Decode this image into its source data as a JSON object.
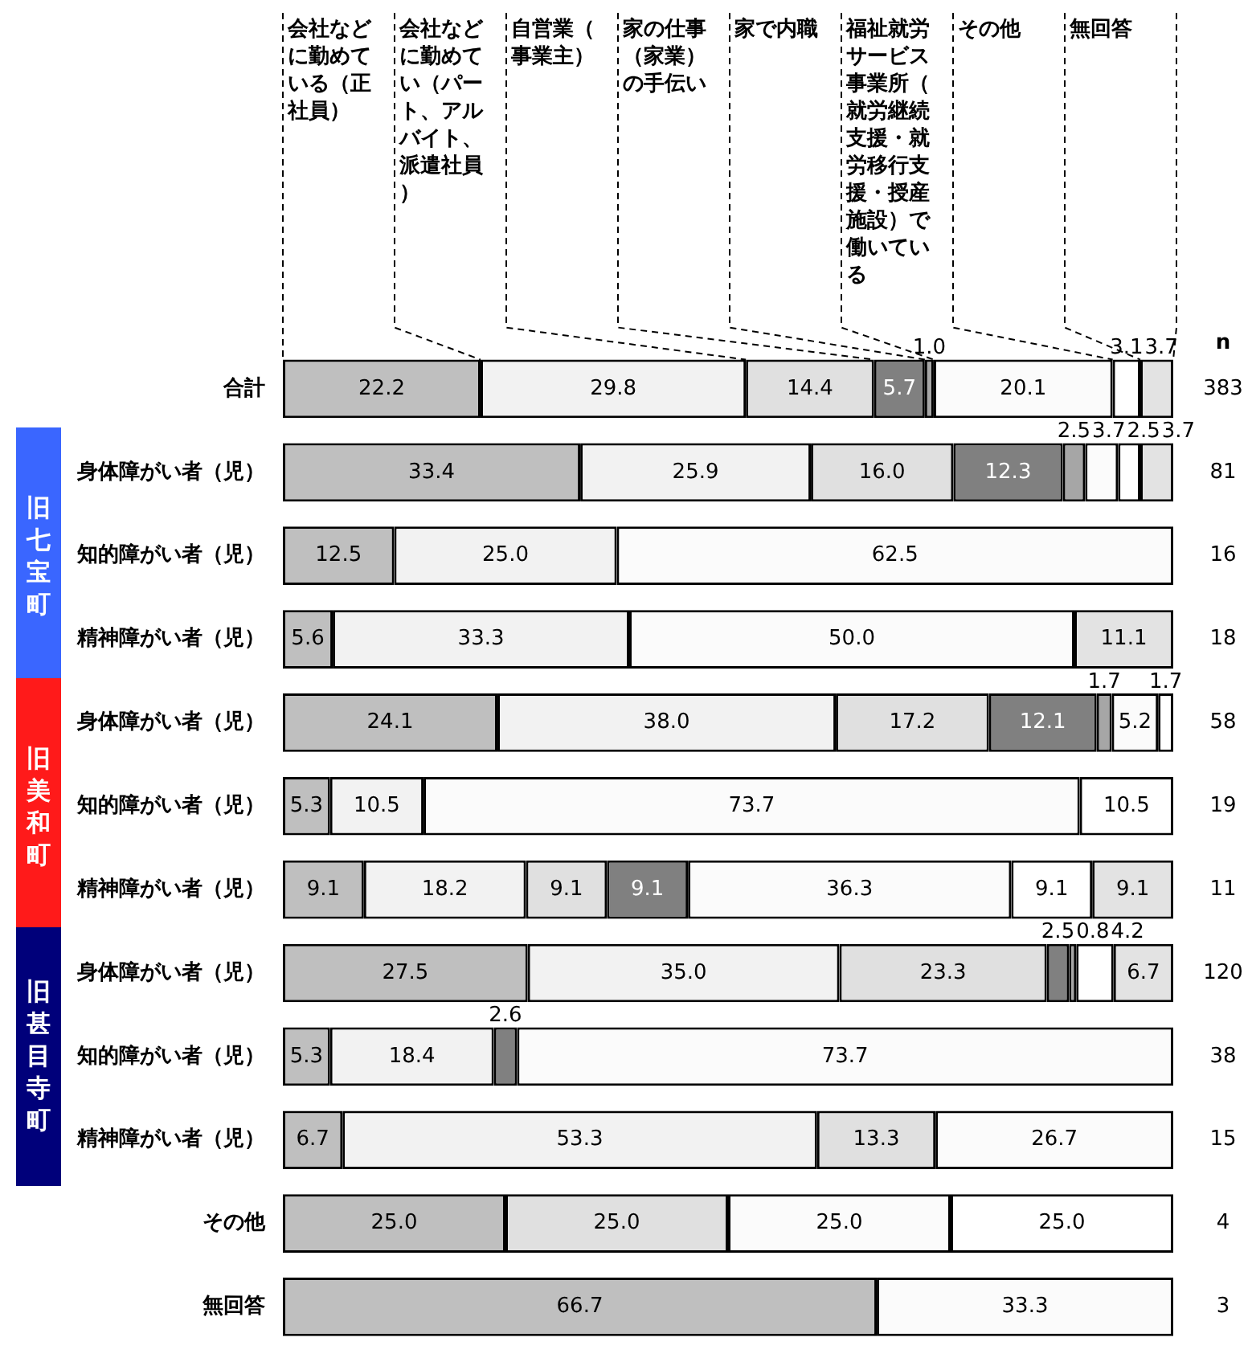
{
  "chart_data": {
    "type": "bar",
    "orientation": "horizontal",
    "stacked": true,
    "legend": "top",
    "tick_labels": "y",
    "xlim": [
      0,
      100
    ],
    "categories": [
      "合計",
      "身体障がい者（児）",
      "知的障がい者（児）",
      "精神障がい者（児）",
      "身体障がい者（児）",
      "知的障がい者（児）",
      "精神障がい者（児）",
      "身体障がい者（児）",
      "知的障がい者（児）",
      "精神障がい者（児）",
      "その他",
      "無回答"
    ],
    "series": [
      {
        "name": "会社などに勤めている（正社員）",
        "color": "#bfbfbf",
        "values": [
          22.2,
          33.4,
          12.5,
          5.6,
          24.1,
          5.3,
          9.1,
          27.5,
          5.3,
          6.7,
          25.0,
          66.7
        ],
        "value_labels": [
          "22.2",
          "33.4",
          "12.5",
          "5.6",
          "24.1",
          "5.3",
          "9.1",
          "27.5",
          "5.3",
          "6.7",
          "25.0",
          "66.7"
        ]
      },
      {
        "name": "会社などに勤めてい（パート、アルバイト、派遣社員）",
        "color": "#f2f2f2",
        "values": [
          29.8,
          25.9,
          25.0,
          33.3,
          38.0,
          10.5,
          18.2,
          35.0,
          18.4,
          53.3,
          null,
          null
        ],
        "value_labels": [
          "29.8",
          "25.9",
          "25.0",
          "33.3",
          "38.0",
          "10.5",
          "18.2",
          "35.0",
          "18.4",
          "53.3",
          null,
          null
        ]
      },
      {
        "name": "自営業（事業主）",
        "color": "#e0e0e0",
        "values": [
          14.4,
          16.0,
          null,
          null,
          17.2,
          null,
          9.1,
          23.3,
          null,
          13.3,
          25.0,
          null
        ],
        "value_labels": [
          "14.4",
          "16.0",
          null,
          null,
          "17.2",
          null,
          "9.1",
          "23.3",
          null,
          "13.3",
          "25.0",
          null
        ]
      },
      {
        "name": "家の仕事（家業）の手伝い",
        "color": "#808080",
        "values": [
          5.7,
          12.3,
          null,
          null,
          12.1,
          null,
          9.1,
          2.5,
          2.6,
          null,
          null,
          null
        ],
        "value_labels": [
          "5.7",
          "12.3",
          null,
          null,
          "12.1",
          null,
          "9.1",
          "2.5",
          "2.6",
          null,
          null,
          null
        ]
      },
      {
        "name": "家で内職",
        "color": "#a6a6a6",
        "values": [
          1.0,
          2.5,
          null,
          null,
          1.7,
          null,
          null,
          0.8,
          null,
          null,
          null,
          null
        ],
        "value_labels": [
          "1.0",
          "2.5",
          null,
          null,
          "1.7",
          null,
          null,
          "0.8",
          null,
          null,
          null,
          null
        ]
      },
      {
        "name": "福祉就労サービス事業所（就労継続支援・就労移行支援・授産施設）で働いている",
        "color": "#fbfbfb",
        "values": [
          20.1,
          3.7,
          62.5,
          50.0,
          5.2,
          73.7,
          36.3,
          null,
          73.7,
          26.7,
          25.0,
          33.3
        ],
        "value_labels": [
          "20.1",
          "3.7",
          "62.5",
          "50.0",
          "5.2",
          "73.7",
          "36.3",
          null,
          "73.7",
          "26.7",
          "25.0",
          "33.3"
        ]
      },
      {
        "name": "その他",
        "color": "#ffffff",
        "values": [
          3.1,
          2.5,
          null,
          null,
          1.7,
          10.5,
          9.1,
          4.2,
          null,
          null,
          25.0,
          null
        ],
        "value_labels": [
          "3.1",
          "2.5",
          null,
          null,
          "1.7",
          "10.5",
          "9.1",
          "4.2",
          null,
          null,
          "25.0",
          null
        ]
      },
      {
        "name": "無回答",
        "color": "#e3e3e3",
        "values": [
          3.7,
          3.7,
          null,
          11.1,
          null,
          null,
          9.1,
          6.7,
          null,
          null,
          null,
          null
        ],
        "value_labels": [
          "3.7",
          "3.7",
          null,
          "11.1",
          null,
          null,
          "9.1",
          "6.7",
          null,
          null,
          null,
          null
        ]
      }
    ],
    "annotations": [
      "n",
      "383",
      "81",
      "16",
      "18",
      "58",
      "19",
      "11",
      "120",
      "38",
      "15",
      "4",
      "3",
      "旧七宝町",
      "旧美和町",
      "旧甚目寺町"
    ]
  }
}
